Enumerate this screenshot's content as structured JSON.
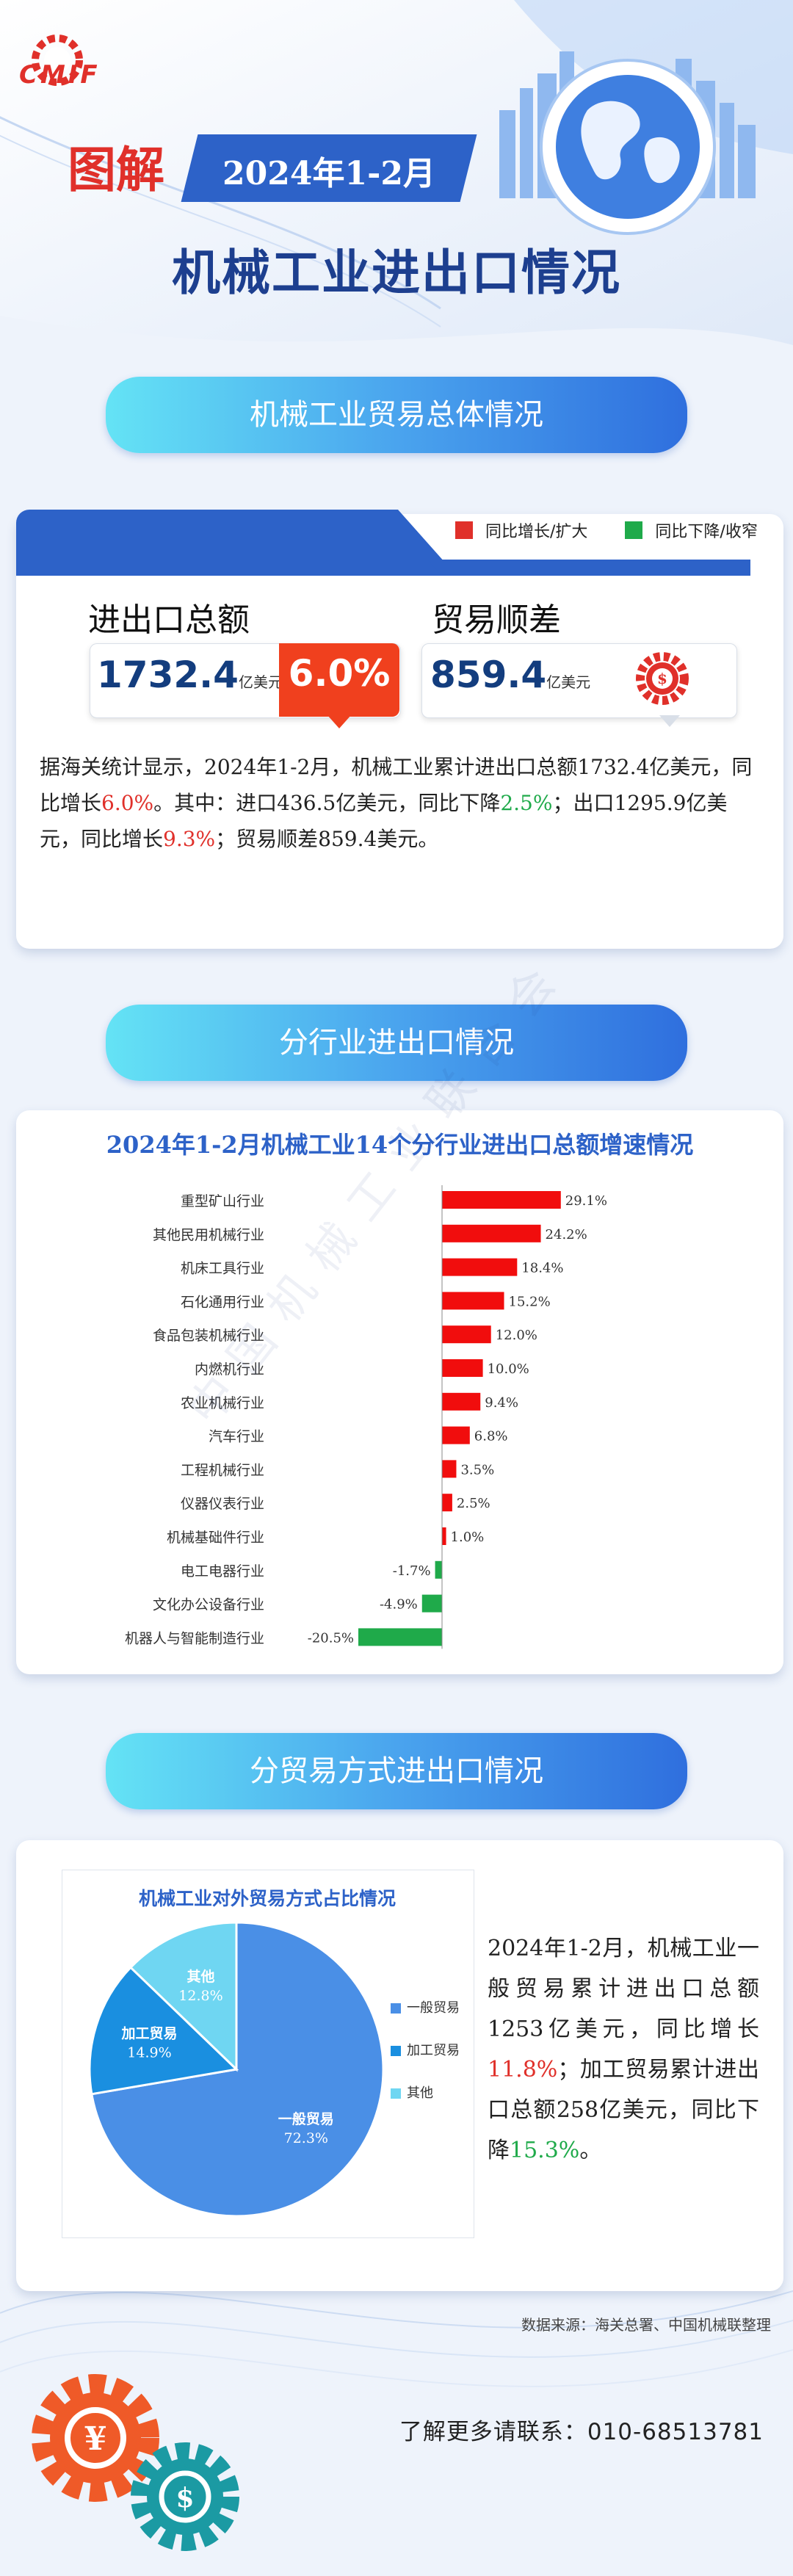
{
  "header": {
    "logo_text": "CMIF",
    "tag_label": "图解",
    "date_label": "2024年1-2月",
    "main_title": "机械工业进出口情况"
  },
  "sections": {
    "overall": "机械工业贸易总体情况",
    "industry": "分行业进出口情况",
    "trade_mode": "分贸易方式进出口情况"
  },
  "legend": {
    "up_label": "同比增长/扩大",
    "down_label": "同比下降/收窄",
    "up_color": "#e0302a",
    "down_color": "#1faa4a"
  },
  "kpis": {
    "total_label": "进出口总额",
    "total_value": "1732.4",
    "total_unit": "亿美元",
    "total_growth": "6.0%",
    "surplus_label": "贸易顺差",
    "surplus_value": "859.4",
    "surplus_unit": "亿美元"
  },
  "overall_text": {
    "p1": "据海关统计显示，2024年1-2月，机械工业累计进出口总额1732.4亿美元，同比增长",
    "p1_growth": "6.0%",
    "p2": "。其中：进口436.5亿美元，同比下降",
    "p2_drop": "2.5%",
    "p3": "；出口1295.9亿美元，同比增长",
    "p3_growth": "9.3%",
    "p4": "；贸易顺差859.4美元。"
  },
  "trade_mode_text": {
    "p1": "2024年1-2月，机械工业一般贸易累计进出口总额1253亿美元，同比增长",
    "p1_growth": "11.8%",
    "p2": "；加工贸易累计进出口总额258亿美元，同比下降",
    "p2_drop": "15.3%",
    "p3": "。"
  },
  "watermark": "中国机械工业联合会",
  "footer": {
    "source": "数据来源：海关总署、中国机械联整理",
    "contact": "了解更多请联系：010-68513781"
  },
  "icons": {
    "logo": "gear-logo-icon",
    "globe": "globe-city-icon",
    "surplus": "dollar-gear-icon",
    "footer_gears": "currency-gears-icon"
  },
  "chart_data": [
    {
      "type": "bar",
      "orientation": "horizontal",
      "title": "2024年1-2月机械工业14个分行业进出口总额增速情况",
      "categories": [
        "重型矿山行业",
        "其他民用机械行业",
        "机床工具行业",
        "石化通用行业",
        "食品包装机械行业",
        "内燃机行业",
        "农业机械行业",
        "汽车行业",
        "工程机械行业",
        "仪器仪表行业",
        "机械基础件行业",
        "电工电器行业",
        "文化办公设备行业",
        "机器人与智能制造行业"
      ],
      "values": [
        29.1,
        24.2,
        18.4,
        15.2,
        12.0,
        10.0,
        9.4,
        6.8,
        3.5,
        2.5,
        1.0,
        -1.7,
        -4.9,
        -20.5
      ],
      "value_labels": [
        "29.1%",
        "24.2%",
        "18.4%",
        "15.2%",
        "12.0%",
        "10.0%",
        "9.4%",
        "6.8%",
        "3.5%",
        "2.5%",
        "1.0%",
        "-1.7%",
        "-4.9%",
        "-20.5%"
      ],
      "unit": "%",
      "positive_color": "#f10d0d",
      "negative_color": "#1faa4a",
      "grid": false,
      "legend": "none"
    },
    {
      "type": "pie",
      "title": "机械工业对外贸易方式占比情况",
      "labels": [
        "一般贸易",
        "加工贸易",
        "其他"
      ],
      "values": [
        72.3,
        14.9,
        12.8
      ],
      "value_labels": [
        "72.3%",
        "14.9%",
        "12.8%"
      ],
      "colors": [
        "#4a8fe6",
        "#1a8fe0",
        "#6fd6f2"
      ],
      "legend": "right"
    }
  ]
}
